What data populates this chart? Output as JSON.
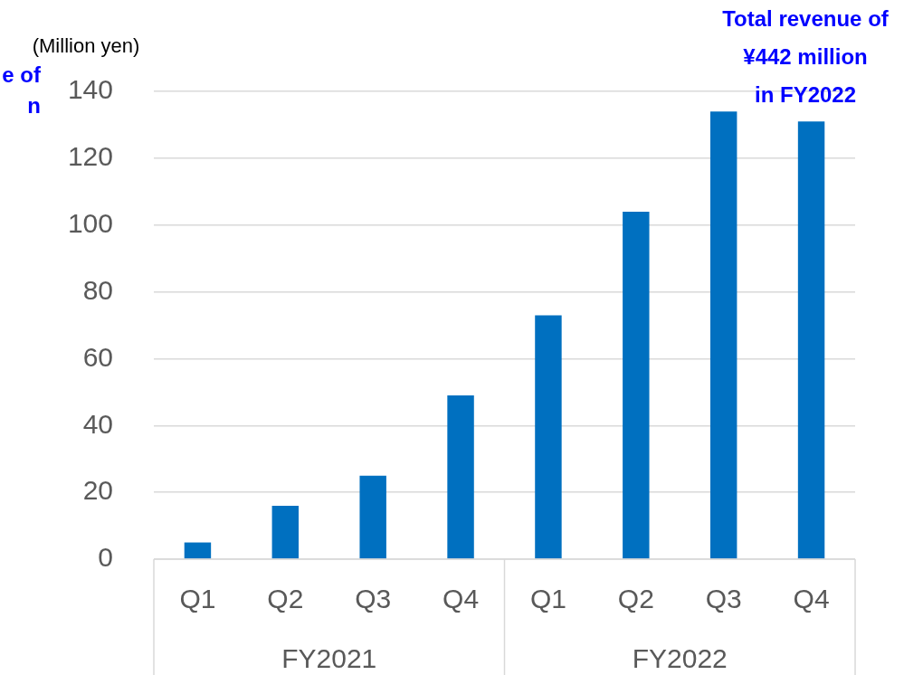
{
  "chart_data": {
    "type": "bar",
    "ylabel": "(Million yen)",
    "categories": [
      "Q1",
      "Q2",
      "Q3",
      "Q4",
      "Q1",
      "Q2",
      "Q3",
      "Q4"
    ],
    "values": [
      5,
      16,
      25,
      49,
      73,
      104,
      134,
      131
    ],
    "color": "#0070c0",
    "ylim": [
      0,
      140
    ],
    "yticks": [
      0,
      20,
      40,
      60,
      80,
      100,
      120,
      140
    ],
    "grid": "y",
    "legend": false,
    "annotations": [
      "e of\nn",
      "Total revenue of\n¥442 million\nin FY2022",
      "FY2021",
      "FY2022"
    ]
  }
}
